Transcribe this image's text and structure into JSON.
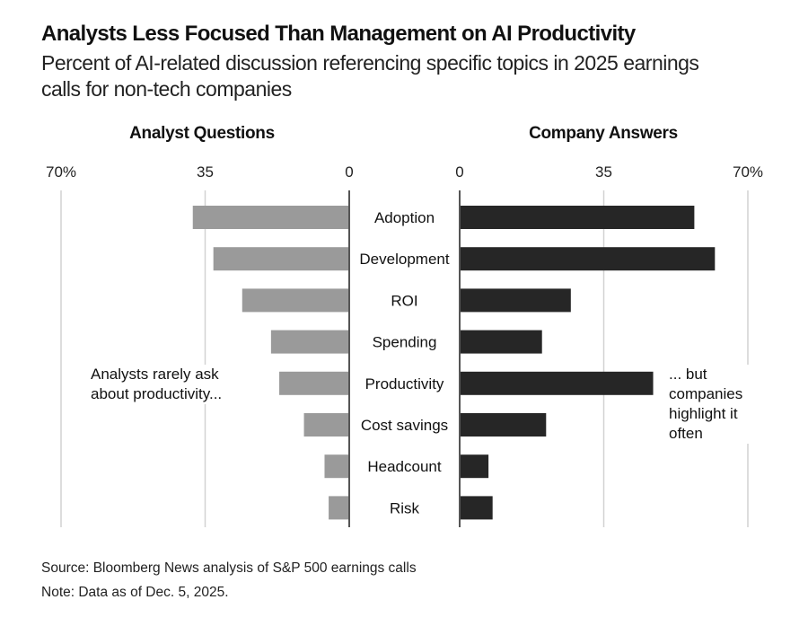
{
  "chart_data": {
    "type": "bar",
    "orientation": "horizontal",
    "layout": "butterfly",
    "title": "Analysts Less Focused Than Management on AI Productivity",
    "subtitle": "Percent of AI-related discussion referencing specific topics in 2025 earnings calls for non-tech companies",
    "categories": [
      "Adoption",
      "Development",
      "ROI",
      "Spending",
      "Productivity",
      "Cost savings",
      "Headcount",
      "Risk"
    ],
    "series": [
      {
        "name": "Analyst Questions",
        "side": "left",
        "color": "#9a9a9a",
        "values": [
          38,
          33,
          26,
          19,
          17,
          11,
          6,
          5
        ]
      },
      {
        "name": "Company Answers",
        "side": "right",
        "color": "#262626",
        "values": [
          57,
          62,
          27,
          20,
          47,
          21,
          7,
          8
        ]
      }
    ],
    "xlim": [
      0,
      70
    ],
    "ticks": [
      0,
      35,
      70
    ],
    "tick_labels": {
      "left": [
        "0",
        "35",
        "70%"
      ],
      "right": [
        "0",
        "35",
        "70%"
      ]
    },
    "grid": true,
    "annotations": {
      "left": "Analysts rarely ask about productivity...",
      "right": "... but companies highlight it often"
    },
    "source": "Source: Bloomberg News analysis of S&P 500 earnings calls",
    "note": "Note: Data as of Dec. 5, 2025.",
    "colors": {
      "grid": "#d2d2d2",
      "zero_line": "#555555"
    }
  }
}
